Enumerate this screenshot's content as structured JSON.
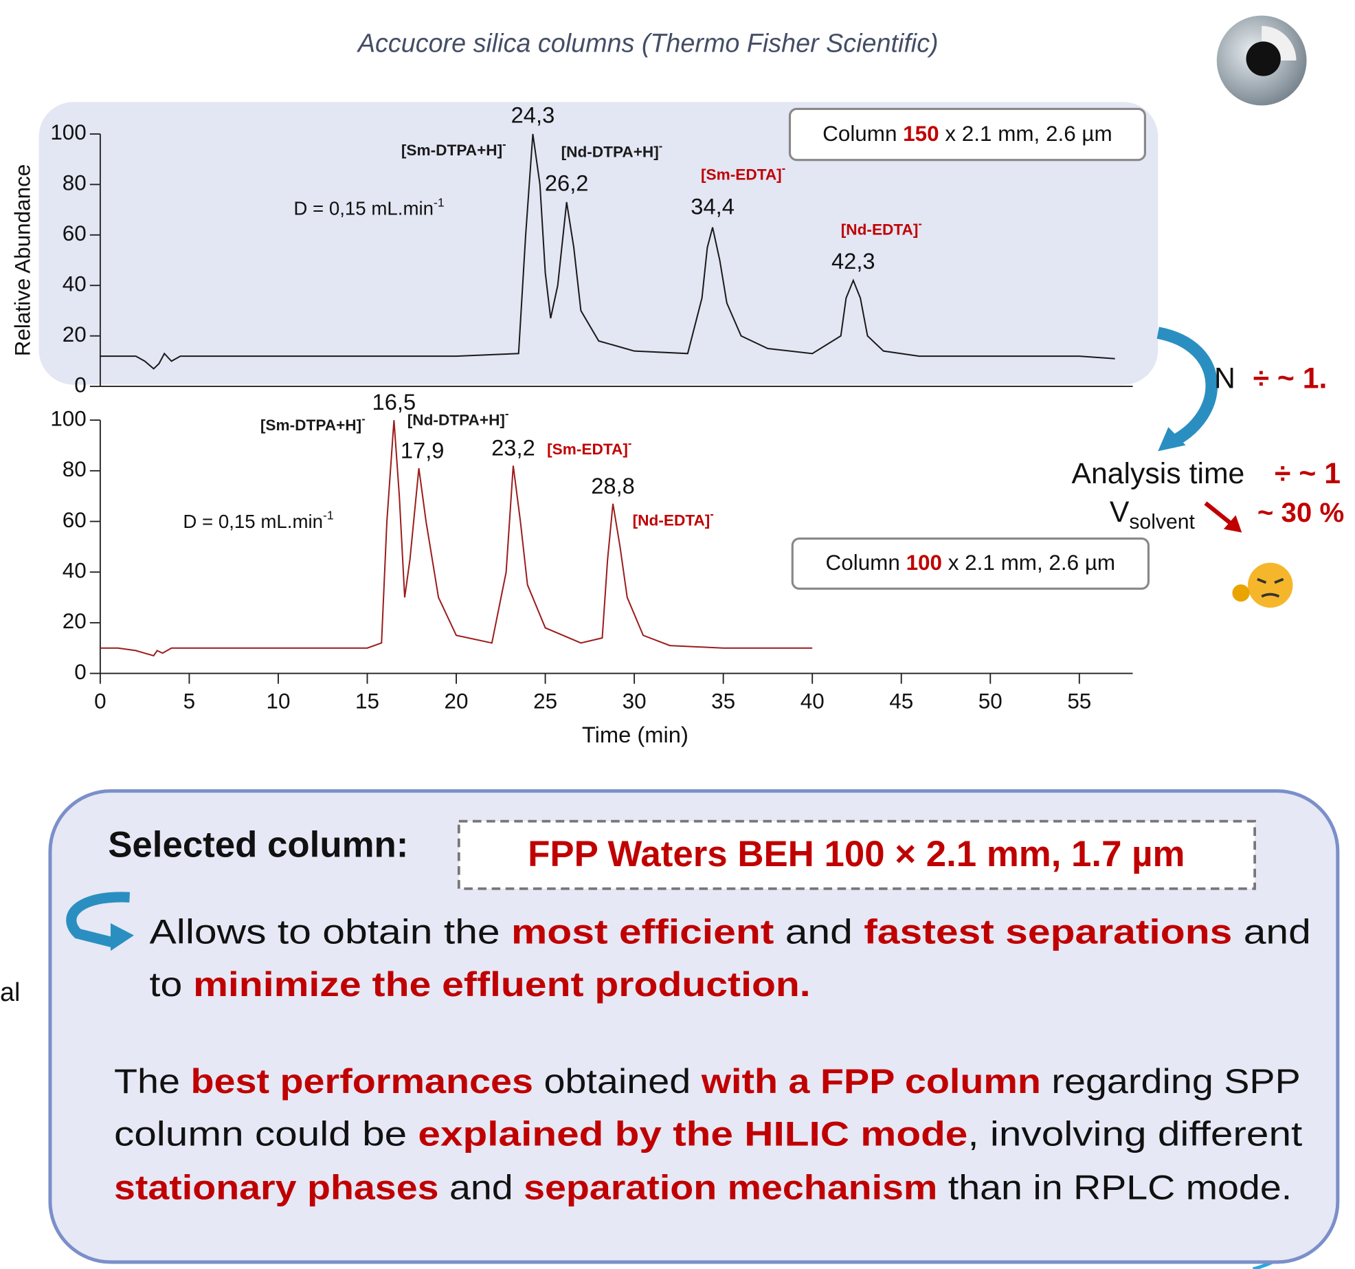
{
  "header": {
    "title": "Accucore silica columns (Thermo Fisher Scientific)"
  },
  "chart_data": [
    {
      "type": "line",
      "ylabel": "Relative Abundance",
      "xlim": [
        0,
        58
      ],
      "ylim": [
        0,
        100
      ],
      "yticks": [
        0,
        20,
        40,
        60,
        80,
        100
      ],
      "background": "#e3e6f3",
      "x": [
        0,
        1,
        2,
        2.5,
        3,
        3.3,
        3.6,
        4,
        4.5,
        5,
        10,
        15,
        20,
        23.5,
        23.9,
        24.3,
        24.7,
        25.0,
        25.3,
        25.7,
        26.2,
        26.6,
        27,
        28,
        30,
        33,
        33.8,
        34.1,
        34.4,
        34.8,
        35.2,
        36,
        37.5,
        40,
        41.6,
        41.9,
        42.3,
        42.7,
        43.1,
        44,
        46,
        50,
        55,
        57
      ],
      "series": [
        {
          "color": "#1a1a1a",
          "values": [
            12,
            12,
            12,
            10,
            7,
            9,
            13,
            10,
            12,
            12,
            12,
            12,
            12,
            13,
            60,
            100,
            80,
            45,
            27,
            40,
            73,
            55,
            30,
            18,
            14,
            13,
            35,
            55,
            63,
            50,
            33,
            20,
            15,
            13,
            20,
            35,
            42,
            35,
            20,
            14,
            12,
            12,
            12,
            11
          ]
        }
      ],
      "peaks": [
        {
          "x": 24.3,
          "label": "24,3",
          "compound": "[Sm-DTPA+H]",
          "charge": "-",
          "color": "#1a1a1a"
        },
        {
          "x": 26.2,
          "label": "26,2",
          "compound": "[Nd-DTPA+H]",
          "charge": "-",
          "color": "#1a1a1a"
        },
        {
          "x": 34.4,
          "label": "34,4",
          "compound": "[Sm-EDTA]",
          "charge": "-",
          "color": "#c00000"
        },
        {
          "x": 42.3,
          "label": "42,3",
          "compound": "[Nd-EDTA]",
          "charge": "-",
          "color": "#c00000"
        }
      ],
      "flow": {
        "text": "D = 0,15 mL.min",
        "sup": "-1"
      },
      "column": [
        {
          "text": "Column "
        },
        {
          "text": "150",
          "highlight": true
        },
        {
          "text": " x 2.1 mm, 2.6 µm"
        }
      ]
    },
    {
      "type": "line",
      "xlabel": "Time (min)",
      "xlim": [
        0,
        58
      ],
      "ylim": [
        0,
        100
      ],
      "yticks": [
        0,
        20,
        40,
        60,
        80,
        100
      ],
      "xticks": [
        0,
        5,
        10,
        15,
        20,
        25,
        30,
        35,
        40,
        45,
        50,
        55
      ],
      "x": [
        0,
        1,
        2,
        2.5,
        3,
        3.2,
        3.5,
        4,
        5,
        10,
        15,
        15.8,
        16.1,
        16.5,
        16.8,
        17.1,
        17.4,
        17.9,
        18.3,
        19,
        20,
        22,
        22.8,
        23.2,
        23.6,
        24,
        25,
        27,
        28.2,
        28.5,
        28.8,
        29.2,
        29.6,
        30.5,
        32,
        35,
        40
      ],
      "series": [
        {
          "color": "#9b1c1c",
          "values": [
            10,
            10,
            9,
            8,
            7,
            9,
            8,
            10,
            10,
            10,
            10,
            12,
            60,
            100,
            70,
            30,
            45,
            81,
            60,
            30,
            15,
            12,
            40,
            82,
            60,
            35,
            18,
            12,
            14,
            45,
            67,
            50,
            30,
            15,
            11,
            10,
            10
          ]
        }
      ],
      "peaks": [
        {
          "x": 16.5,
          "label": "16,5",
          "compound": "[Sm-DTPA+H]",
          "charge": "-",
          "color": "#1a1a1a"
        },
        {
          "x": 17.9,
          "label": "17,9",
          "compound": "[Nd-DTPA+H]",
          "charge": "-",
          "color": "#1a1a1a"
        },
        {
          "x": 23.2,
          "label": "23,2",
          "compound": "[Sm-EDTA]",
          "charge": "-",
          "color": "#c00000"
        },
        {
          "x": 28.8,
          "label": "28,8",
          "compound": "[Nd-EDTA]",
          "charge": "-",
          "color": "#c00000"
        }
      ],
      "flow": {
        "text": "D = 0,15 mL.min",
        "sup": "-1"
      },
      "column": [
        {
          "text": "Column "
        },
        {
          "text": "100",
          "highlight": true
        },
        {
          "text": " x 2.1 mm, 2.6 µm"
        }
      ]
    }
  ],
  "comparison": {
    "n_label": "N",
    "n_ratio": "÷ ~ 1.",
    "time_label": "Analysis time",
    "time_ratio": "÷ ~ 1",
    "volume_label": "V",
    "volume_sub": "solvent",
    "volume_change": "~ 30 %"
  },
  "selection": {
    "label": "Selected column:",
    "column": "FPP Waters BEH 100 × 2.1 mm, 1.7 µm",
    "paragraphs": [
      [
        [
          {
            "text": "Allows to obtain the "
          },
          {
            "text": "most efficient",
            "highlight": true
          },
          {
            "text": " and "
          },
          {
            "text": "fastest separations",
            "highlight": true
          },
          {
            "text": " and"
          }
        ],
        [
          {
            "text": "to "
          },
          {
            "text": "minimize the effluent production.",
            "highlight": true
          }
        ]
      ],
      [
        [
          {
            "text": "The "
          },
          {
            "text": "best performances",
            "highlight": true
          },
          {
            "text": " obtained "
          },
          {
            "text": "with a FPP column",
            "highlight": true
          },
          {
            "text": " regarding SPP"
          }
        ],
        [
          {
            "text": "column could be "
          },
          {
            "text": "explained by the HILIC mode",
            "highlight": true
          },
          {
            "text": ", involving different"
          }
        ],
        [
          {
            "text": "stationary phases",
            "highlight": true
          },
          {
            "text": " and "
          },
          {
            "text": "separation mechanism",
            "highlight": true
          },
          {
            "text": " than in RPLC mode."
          }
        ]
      ]
    ]
  },
  "fragment": "al"
}
